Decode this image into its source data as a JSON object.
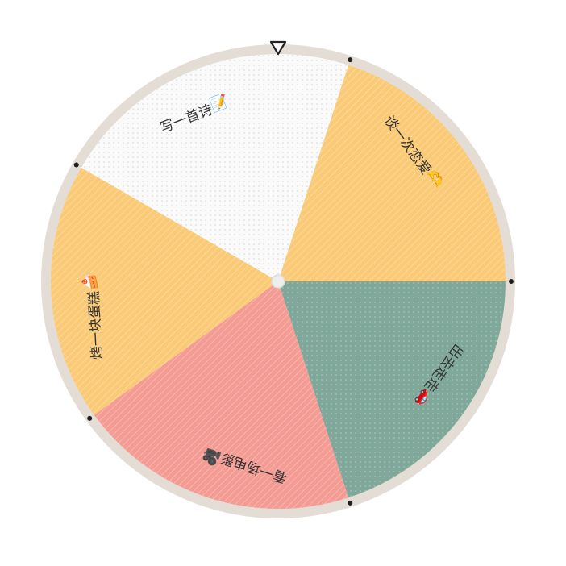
{
  "wheel": {
    "rim_color": "#e4ddd6",
    "hub_color": "#eeeeee",
    "pointer_icon": "triangle-down",
    "pointer_color": "#222222",
    "segments": [
      {
        "label": "写一首诗",
        "icon": "notepad-icon",
        "glyph": "📝",
        "color": "#fafafa",
        "pattern": "dots"
      },
      {
        "label": "谈一次恋爱",
        "icon": "heart-hands-icon",
        "glyph": "🫶",
        "color": "#fbca76",
        "pattern": "stripes"
      },
      {
        "label": "出去走走",
        "icon": "car-icon",
        "glyph": "🚗",
        "color": "#7fa89a",
        "pattern": "dots"
      },
      {
        "label": "看一场电影",
        "icon": "movie-camera-icon",
        "glyph": "🎥",
        "color": "#f49b93",
        "pattern": "stripes"
      },
      {
        "label": "烤一块蛋糕",
        "icon": "cake-icon",
        "glyph": "🍰",
        "color": "#fbca76",
        "pattern": "stripes"
      }
    ]
  }
}
